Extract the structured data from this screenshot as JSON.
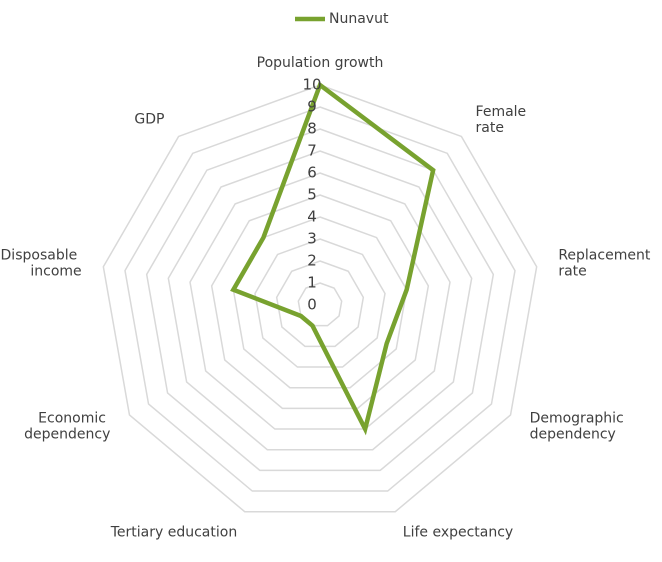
{
  "chart_data": {
    "type": "radar",
    "categories": [
      "Population growth",
      "Female rate",
      "Replacement rate",
      "Demographic dependency",
      "Life expectancy",
      "Tertiary education",
      "Economic dependency",
      "Disposable income",
      "GDP"
    ],
    "series": [
      {
        "name": "Nunavut",
        "color": "#78a22f",
        "values": [
          10,
          8,
          4,
          3.5,
          6,
          1,
          1,
          4,
          4
        ]
      }
    ],
    "ylim": [
      0,
      10
    ],
    "yticks": [
      0,
      1,
      2,
      3,
      4,
      5,
      6,
      7,
      8,
      9,
      10
    ],
    "grid": true,
    "legend": "top"
  }
}
